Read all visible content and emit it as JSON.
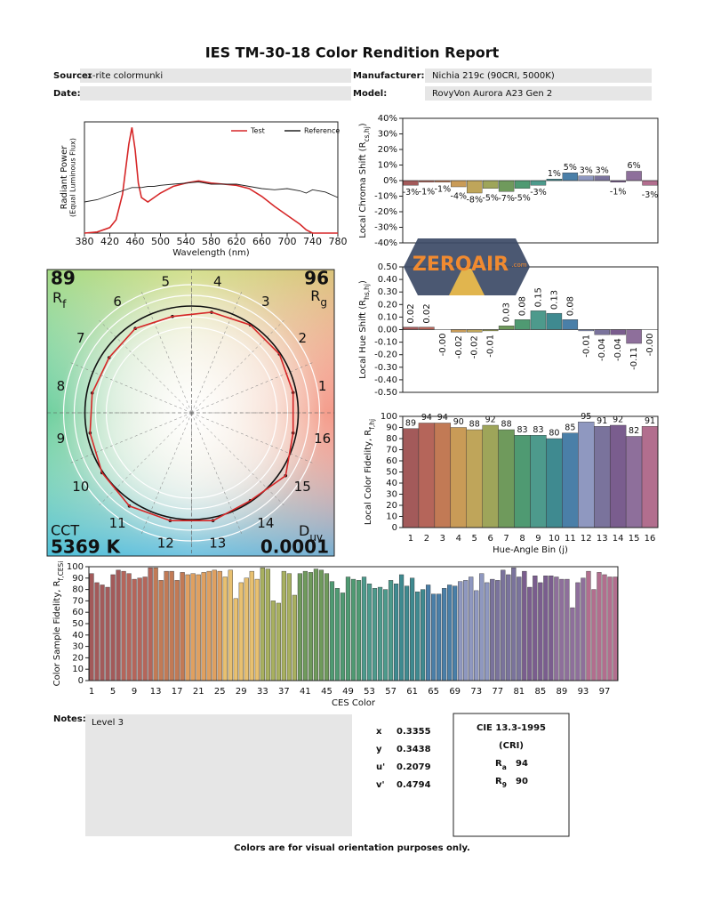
{
  "header": {
    "title": "IES TM-30-18 Color Rendition Report",
    "fields": [
      {
        "label": "Source:",
        "value": "x-rite colormunki"
      },
      {
        "label": "Manufacturer:",
        "value": "Nichia 219c (90CRI, 5000K)"
      },
      {
        "label": "Date:"
      },
      {
        "label": "Model:",
        "value": "RovyVon Aurora A23 Gen 2"
      }
    ]
  },
  "chart_data": [
    {
      "type": "line",
      "xlabel": "Wavelength (nm)",
      "ylabel": "Radiant Power",
      "ylabel2": "(Equal Luminous Flux)",
      "x": [
        380,
        400,
        420,
        430,
        440,
        450,
        455,
        460,
        465,
        470,
        480,
        490,
        500,
        520,
        540,
        560,
        580,
        600,
        620,
        640,
        660,
        680,
        700,
        720,
        730,
        740,
        760,
        780
      ],
      "xlim": [
        380,
        780
      ],
      "xticks": [
        380,
        420,
        460,
        500,
        540,
        580,
        620,
        660,
        700,
        740,
        780
      ],
      "ylim": [
        0,
        1
      ],
      "legend": "upper right",
      "series": [
        {
          "name": "Test",
          "color": "#d62728",
          "values": [
            0,
            0.01,
            0.05,
            0.12,
            0.35,
            0.8,
            0.95,
            0.75,
            0.45,
            0.32,
            0.28,
            0.32,
            0.36,
            0.42,
            0.45,
            0.47,
            0.45,
            0.44,
            0.43,
            0.4,
            0.33,
            0.24,
            0.16,
            0.08,
            0.03,
            0,
            0,
            0
          ]
        },
        {
          "name": "Reference",
          "color": "#222222",
          "values": [
            0.28,
            0.3,
            0.34,
            0.36,
            0.38,
            0.4,
            0.41,
            0.41,
            0.41,
            0.41,
            0.42,
            0.42,
            0.43,
            0.44,
            0.45,
            0.46,
            0.44,
            0.44,
            0.44,
            0.42,
            0.4,
            0.39,
            0.4,
            0.38,
            0.36,
            0.39,
            0.37,
            0.32
          ]
        }
      ]
    },
    {
      "type": "bar",
      "ylabel": "Local Chroma Shift (R",
      "ylabel_sub": "cs,hj",
      "ylabel_end": ")",
      "values": [
        -3,
        -1,
        -1,
        -4,
        -8,
        -5,
        -7,
        -5,
        -3,
        1,
        5,
        3,
        3,
        -1,
        6,
        -3
      ],
      "value_labels": [
        "-3%",
        "-1%",
        "-1%",
        "-4%",
        "-8%",
        "-5%",
        "-7%",
        "-5%",
        "-3%",
        "1%",
        "5%",
        "3%",
        "3%",
        "-1%",
        "6%",
        "-3%"
      ],
      "colors": [
        "#a35a5a",
        "#b5655a",
        "#c27a55",
        "#c99b57",
        "#bfa55a",
        "#9ea55a",
        "#6f9a5c",
        "#4f9a72",
        "#4d9a8c",
        "#3f8a90",
        "#4a7fa8",
        "#8f98c0",
        "#7a739c",
        "#7a5d8e",
        "#8e6f9b",
        "#b26e8e"
      ],
      "ylim": [
        -40,
        40
      ],
      "yticks": [
        {
          "value": -40,
          "label": "-40%"
        },
        {
          "value": -30,
          "label": "-30%"
        },
        {
          "value": -20,
          "label": "-20%"
        },
        {
          "value": -10,
          "label": "-10%"
        },
        {
          "value": 0,
          "label": "0%"
        },
        {
          "value": 10,
          "label": "10%"
        },
        {
          "value": 20,
          "label": "20%"
        },
        {
          "value": 30,
          "label": "30%"
        },
        {
          "value": 40,
          "label": "40%"
        }
      ]
    },
    {
      "type": "bar",
      "ylabel": "Local Hue Shift (R",
      "ylabel_sub": "hs,hj",
      "ylabel_end": ")",
      "values": [
        0.02,
        0.02,
        0,
        -0.02,
        -0.02,
        -0.01,
        0.03,
        0.08,
        0.15,
        0.13,
        0.08,
        -0.01,
        -0.04,
        -0.04,
        -0.11,
        0
      ],
      "value_labels": [
        "0.02",
        "0.02",
        "-0.00",
        "-0.02",
        "-0.02",
        "-0.01",
        "0.03",
        "0.08",
        "0.15",
        "0.13",
        "0.08",
        "-0.01",
        "-0.04",
        "-0.04",
        "-0.11",
        "-0.00"
      ],
      "value_label_rotation": -90,
      "colors": [
        "#a35a5a",
        "#b5655a",
        "#c27a55",
        "#c99b57",
        "#bfa55a",
        "#9ea55a",
        "#6f9a5c",
        "#4f9a72",
        "#4d9a8c",
        "#3f8a90",
        "#4a7fa8",
        "#8f98c0",
        "#7a739c",
        "#7a5d8e",
        "#8e6f9b",
        "#b26e8e"
      ],
      "ylim": [
        -0.5,
        0.5
      ],
      "yticks": [
        {
          "value": -0.5,
          "label": "-0.50"
        },
        {
          "value": -0.4,
          "label": "-0.40"
        },
        {
          "value": -0.3,
          "label": "-0.30"
        },
        {
          "value": -0.2,
          "label": "-0.20"
        },
        {
          "value": -0.1,
          "label": "-0.10"
        },
        {
          "value": 0,
          "label": "0.00"
        },
        {
          "value": 0.1,
          "label": "0.10"
        },
        {
          "value": 0.2,
          "label": "0.20"
        },
        {
          "value": 0.3,
          "label": "0.30"
        },
        {
          "value": 0.4,
          "label": "0.40"
        },
        {
          "value": 0.5,
          "label": "0.50"
        }
      ]
    },
    {
      "type": "bar",
      "xlabel": "Hue-Angle Bin (j)",
      "ylabel": "Local Color Fidelity, R",
      "ylabel_sub": "f,hj",
      "data_labels": true,
      "categories": [
        "1",
        "2",
        "3",
        "4",
        "5",
        "6",
        "7",
        "8",
        "9",
        "10",
        "11",
        "12",
        "13",
        "14",
        "15",
        "16"
      ],
      "values": [
        89,
        94,
        94,
        90,
        88,
        92,
        88,
        83,
        83,
        80,
        85,
        95,
        91,
        92,
        82,
        91
      ],
      "colors": [
        "#a35a5a",
        "#b5655a",
        "#c27a55",
        "#c99b57",
        "#bfa55a",
        "#9ea55a",
        "#6f9a5c",
        "#4f9a72",
        "#4d9a8c",
        "#3f8a90",
        "#4a7fa8",
        "#8f98c0",
        "#7a739c",
        "#7a5d8e",
        "#8e6f9b",
        "#b26e8e"
      ],
      "ylim": [
        0,
        100
      ],
      "yticks": [
        0,
        10,
        20,
        30,
        40,
        50,
        60,
        70,
        80,
        90,
        100
      ]
    },
    {
      "type": "vector",
      "rf": 89,
      "rf_label": "R",
      "rf_sub": "f",
      "rg": 96,
      "rg_label": "R",
      "rg_sub": "g",
      "cct_label": "CCT",
      "cct": "5369 K",
      "duv_label": "D",
      "duv_sub": "uv",
      "duv": "0.0001",
      "categories": [
        "1",
        "2",
        "3",
        "4",
        "5",
        "6",
        "7",
        "8",
        "9",
        "10",
        "11",
        "12",
        "13",
        "14",
        "15",
        "16"
      ],
      "values": [
        0.97,
        0.99,
        0.99,
        0.96,
        0.92,
        0.95,
        0.93,
        0.95,
        0.97,
        1.01,
        1.05,
        1.03,
        1.03,
        0.99,
        1.06,
        0.97
      ],
      "reference_radius": 1,
      "test_color": "#d62728",
      "reference_color": "#111111"
    },
    {
      "type": "bar",
      "xlabel": "CES Color",
      "ylabel": "Color Sample Fidelity, R",
      "ylabel_sub": "f,CESi",
      "categories": [
        "1",
        null,
        null,
        null,
        "5",
        null,
        null,
        null,
        "9",
        null,
        null,
        null,
        "13",
        null,
        null,
        null,
        "17",
        null,
        null,
        null,
        "21",
        null,
        null,
        null,
        "25",
        null,
        null,
        null,
        "29",
        null,
        null,
        null,
        "33",
        null,
        null,
        null,
        "37",
        null,
        null,
        null,
        "41",
        null,
        null,
        null,
        "45",
        null,
        null,
        null,
        "49",
        null,
        null,
        null,
        "53",
        null,
        null,
        null,
        "57",
        null,
        null,
        null,
        "61",
        null,
        null,
        null,
        "65",
        null,
        null,
        null,
        "69",
        null,
        null,
        null,
        "73",
        null,
        null,
        null,
        "77",
        null,
        null,
        null,
        "81",
        null,
        null,
        null,
        "85",
        null,
        null,
        null,
        "89",
        null,
        null,
        null,
        "93",
        null,
        null,
        null,
        "97",
        null,
        null
      ],
      "values": [
        94,
        86,
        84,
        82,
        93,
        97,
        96,
        94,
        89,
        90,
        91,
        99,
        99,
        88,
        96,
        96,
        88,
        95,
        93,
        94,
        93,
        95,
        96,
        97,
        96,
        91,
        97,
        72,
        86,
        90,
        96,
        89,
        99,
        98,
        70,
        68,
        96,
        94,
        75,
        94,
        96,
        95,
        98,
        97,
        94,
        87,
        81,
        77,
        91,
        89,
        88,
        91,
        85,
        81,
        82,
        80,
        88,
        85,
        93,
        83,
        90,
        78,
        80,
        84,
        76,
        76,
        81,
        84,
        83,
        87,
        88,
        91,
        79,
        94,
        86,
        89,
        88,
        97,
        93,
        99,
        91,
        96,
        82,
        92,
        86,
        92,
        92,
        91,
        89,
        89,
        64,
        86,
        90,
        96,
        80,
        95,
        93,
        91,
        91
      ],
      "colors": [
        "#a35a5a",
        "#a35a5a",
        "#a35a5a",
        "#a35a5a",
        "#a35a5a",
        "#a35a5a",
        "#b5655a",
        "#b5655a",
        "#b5655a",
        "#b5655a",
        "#b5655a",
        "#b5655a",
        "#c27a55",
        "#c27a55",
        "#c27a55",
        "#c27a55",
        "#c27a55",
        "#c27a55",
        "#e0a060",
        "#e0a060",
        "#e0a060",
        "#e0a060",
        "#e0a060",
        "#e0a060",
        "#e0a060",
        "#e8c070",
        "#e8c070",
        "#e8c070",
        "#e8c070",
        "#e8c070",
        "#e8c070",
        "#e8c070",
        "#a8b060",
        "#a8b060",
        "#a8b060",
        "#a8b060",
        "#a8b060",
        "#a8b060",
        "#a8b060",
        "#6f9a5c",
        "#6f9a5c",
        "#6f9a5c",
        "#6f9a5c",
        "#6f9a5c",
        "#6f9a5c",
        "#4f9a72",
        "#4f9a72",
        "#4f9a72",
        "#4f9a72",
        "#4f9a72",
        "#4f9a72",
        "#4d9a8c",
        "#4d9a8c",
        "#4d9a8c",
        "#4d9a8c",
        "#4d9a8c",
        "#4d9a8c",
        "#3f8a90",
        "#3f8a90",
        "#3f8a90",
        "#3f8a90",
        "#3f8a90",
        "#3f8a90",
        "#4a7fa8",
        "#4a7fa8",
        "#4a7fa8",
        "#4a7fa8",
        "#4a7fa8",
        "#4a7fa8",
        "#8f98c0",
        "#8f98c0",
        "#8f98c0",
        "#8f98c0",
        "#8f98c0",
        "#8f98c0",
        "#7a739c",
        "#7a739c",
        "#7a739c",
        "#7a739c",
        "#7a739c",
        "#7a739c",
        "#7a5d8e",
        "#7a5d8e",
        "#7a5d8e",
        "#7a5d8e",
        "#7a5d8e",
        "#7a5d8e",
        "#8e6f9b",
        "#8e6f9b",
        "#8e6f9b",
        "#8e6f9b",
        "#8e6f9b",
        "#8e6f9b",
        "#b26e8e",
        "#b26e8e",
        "#b26e8e",
        "#b26e8e",
        "#b26e8e",
        "#b26e8e"
      ],
      "ylim": [
        0,
        100
      ],
      "yticks": [
        0,
        10,
        20,
        30,
        40,
        50,
        60,
        70,
        80,
        90,
        100
      ]
    }
  ],
  "notes": {
    "label": "Notes:",
    "text": "Level 3"
  },
  "chromaticity": [
    {
      "label": "x",
      "value": "0.3355"
    },
    {
      "label": "y",
      "value": "0.3438"
    },
    {
      "label": "u'",
      "value": "0.2079"
    },
    {
      "label": "v'",
      "value": "0.4794"
    }
  ],
  "cri": {
    "title": "CIE 13.3-1995",
    "subtitle": "(CRI)",
    "items": [
      {
        "label": "R",
        "sub": "a",
        "value": "94"
      },
      {
        "label": "R",
        "sub": "9",
        "value": "90"
      }
    ]
  },
  "footer": "Colors are for visual orientation purposes only.",
  "watermark": {
    "text": "ZEROAIR",
    "sub": ".com"
  }
}
